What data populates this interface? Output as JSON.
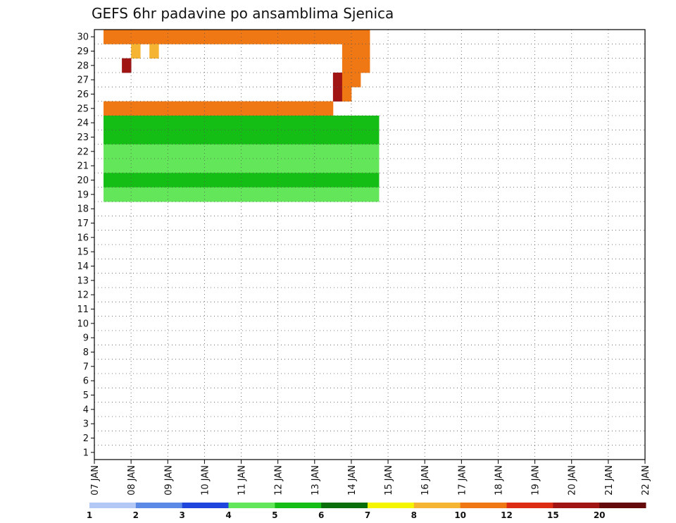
{
  "chart_data": {
    "type": "heatmap",
    "title": "GEFS 6hr padavine po ansamblima Sjenica",
    "xlabel": "",
    "ylabel": "",
    "x_ticks": [
      "07 JAN",
      "08 JAN",
      "09 JAN",
      "10 JAN",
      "11 JAN",
      "12 JAN",
      "13 JAN",
      "14 JAN",
      "15 JAN",
      "16 JAN",
      "17 JAN",
      "18 JAN",
      "19 JAN",
      "20 JAN",
      "21 JAN",
      "22 JAN"
    ],
    "y_ticks": [
      "1",
      "2",
      "3",
      "4",
      "5",
      "6",
      "7",
      "8",
      "9",
      "10",
      "11",
      "12",
      "13",
      "14",
      "15",
      "16",
      "17",
      "18",
      "19",
      "20",
      "21",
      "22",
      "23",
      "24",
      "25",
      "26",
      "27",
      "28",
      "29",
      "30"
    ],
    "x_range": [
      "07 JAN 00Z",
      "22 JAN 00Z"
    ],
    "y_range": [
      0,
      30
    ],
    "time_step_hours": 6,
    "grid": "dotted",
    "legend_position": "bottom",
    "colorbar": {
      "labels": [
        "1",
        "2",
        "3",
        "4",
        "5",
        "6",
        "7",
        "8",
        "10",
        "12",
        "15",
        "20"
      ],
      "colors": [
        "#b4c8f5",
        "#5a8ae6",
        "#1e46dc",
        "#64e65a",
        "#14be14",
        "#0a6e0a",
        "#f5f500",
        "#f5b432",
        "#f07814",
        "#dc2d14",
        "#a01414",
        "#640a0a"
      ]
    },
    "cells": [
      [
        30,
        1,
        8
      ],
      [
        30,
        2,
        8
      ],
      [
        30,
        3,
        8
      ],
      [
        30,
        4,
        8
      ],
      [
        30,
        5,
        8
      ],
      [
        30,
        6,
        8
      ],
      [
        30,
        7,
        8
      ],
      [
        30,
        8,
        8
      ],
      [
        30,
        9,
        8
      ],
      [
        30,
        10,
        8
      ],
      [
        30,
        11,
        8
      ],
      [
        30,
        12,
        8
      ],
      [
        30,
        13,
        8
      ],
      [
        30,
        14,
        8
      ],
      [
        30,
        15,
        8
      ],
      [
        30,
        16,
        8
      ],
      [
        30,
        17,
        8
      ],
      [
        30,
        18,
        8
      ],
      [
        30,
        19,
        8
      ],
      [
        30,
        20,
        8
      ],
      [
        30,
        21,
        8
      ],
      [
        30,
        22,
        8
      ],
      [
        30,
        23,
        8
      ],
      [
        30,
        24,
        8
      ],
      [
        30,
        25,
        8
      ],
      [
        30,
        26,
        8
      ],
      [
        30,
        27,
        8
      ],
      [
        30,
        28,
        8
      ],
      [
        30,
        29,
        8
      ],
      [
        29,
        4,
        7
      ],
      [
        29,
        6,
        7
      ],
      [
        29,
        27,
        8
      ],
      [
        29,
        28,
        8
      ],
      [
        29,
        29,
        8
      ],
      [
        28,
        3,
        10
      ],
      [
        28,
        27,
        8
      ],
      [
        28,
        28,
        8
      ],
      [
        28,
        29,
        8
      ],
      [
        27,
        26,
        10
      ],
      [
        27,
        27,
        8
      ],
      [
        27,
        28,
        8
      ],
      [
        26,
        26,
        10
      ],
      [
        26,
        27,
        8
      ],
      [
        25,
        1,
        8
      ],
      [
        25,
        2,
        8
      ],
      [
        25,
        3,
        8
      ],
      [
        25,
        4,
        8
      ],
      [
        25,
        5,
        8
      ],
      [
        25,
        6,
        8
      ],
      [
        25,
        7,
        8
      ],
      [
        25,
        8,
        8
      ],
      [
        25,
        9,
        8
      ],
      [
        25,
        10,
        8
      ],
      [
        25,
        11,
        8
      ],
      [
        25,
        12,
        8
      ],
      [
        25,
        13,
        8
      ],
      [
        25,
        14,
        8
      ],
      [
        25,
        15,
        8
      ],
      [
        25,
        16,
        8
      ],
      [
        25,
        17,
        8
      ],
      [
        25,
        18,
        8
      ],
      [
        25,
        19,
        8
      ],
      [
        25,
        20,
        8
      ],
      [
        25,
        21,
        8
      ],
      [
        25,
        22,
        8
      ],
      [
        25,
        23,
        8
      ],
      [
        25,
        24,
        8
      ],
      [
        25,
        25,
        8
      ],
      [
        24,
        1,
        4
      ],
      [
        24,
        2,
        4
      ],
      [
        24,
        3,
        4
      ],
      [
        24,
        4,
        4
      ],
      [
        24,
        5,
        4
      ],
      [
        24,
        6,
        4
      ],
      [
        24,
        7,
        4
      ],
      [
        24,
        8,
        4
      ],
      [
        24,
        9,
        4
      ],
      [
        24,
        10,
        4
      ],
      [
        24,
        11,
        4
      ],
      [
        24,
        12,
        4
      ],
      [
        24,
        13,
        4
      ],
      [
        24,
        14,
        4
      ],
      [
        24,
        15,
        4
      ],
      [
        24,
        16,
        4
      ],
      [
        24,
        17,
        4
      ],
      [
        24,
        18,
        4
      ],
      [
        24,
        19,
        4
      ],
      [
        24,
        20,
        4
      ],
      [
        24,
        21,
        4
      ],
      [
        24,
        22,
        4
      ],
      [
        24,
        23,
        4
      ],
      [
        24,
        24,
        4
      ],
      [
        24,
        25,
        4
      ],
      [
        24,
        26,
        4
      ],
      [
        24,
        27,
        4
      ],
      [
        24,
        28,
        4
      ],
      [
        24,
        29,
        4
      ],
      [
        24,
        30,
        4
      ],
      [
        23,
        1,
        4
      ],
      [
        23,
        2,
        4
      ],
      [
        23,
        3,
        4
      ],
      [
        23,
        4,
        4
      ],
      [
        23,
        5,
        4
      ],
      [
        23,
        6,
        4
      ],
      [
        23,
        7,
        4
      ],
      [
        23,
        8,
        4
      ],
      [
        23,
        9,
        4
      ],
      [
        23,
        10,
        4
      ],
      [
        23,
        11,
        4
      ],
      [
        23,
        12,
        4
      ],
      [
        23,
        13,
        4
      ],
      [
        23,
        14,
        4
      ],
      [
        23,
        15,
        4
      ],
      [
        23,
        16,
        4
      ],
      [
        23,
        17,
        4
      ],
      [
        23,
        18,
        4
      ],
      [
        23,
        19,
        4
      ],
      [
        23,
        20,
        4
      ],
      [
        23,
        21,
        4
      ],
      [
        23,
        22,
        4
      ],
      [
        23,
        23,
        4
      ],
      [
        23,
        24,
        4
      ],
      [
        23,
        25,
        4
      ],
      [
        23,
        26,
        4
      ],
      [
        23,
        27,
        4
      ],
      [
        23,
        28,
        4
      ],
      [
        23,
        29,
        4
      ],
      [
        23,
        30,
        4
      ],
      [
        22,
        1,
        3
      ],
      [
        22,
        2,
        3
      ],
      [
        22,
        3,
        3
      ],
      [
        22,
        4,
        3
      ],
      [
        22,
        5,
        3
      ],
      [
        22,
        6,
        3
      ],
      [
        22,
        7,
        3
      ],
      [
        22,
        8,
        3
      ],
      [
        22,
        9,
        3
      ],
      [
        22,
        10,
        3
      ],
      [
        22,
        11,
        3
      ],
      [
        22,
        12,
        3
      ],
      [
        22,
        13,
        3
      ],
      [
        22,
        14,
        3
      ],
      [
        22,
        15,
        3
      ],
      [
        22,
        16,
        3
      ],
      [
        22,
        17,
        3
      ],
      [
        22,
        18,
        3
      ],
      [
        22,
        19,
        3
      ],
      [
        22,
        20,
        3
      ],
      [
        22,
        21,
        3
      ],
      [
        22,
        22,
        3
      ],
      [
        22,
        23,
        3
      ],
      [
        22,
        24,
        3
      ],
      [
        22,
        25,
        3
      ],
      [
        22,
        26,
        3
      ],
      [
        22,
        27,
        3
      ],
      [
        22,
        28,
        3
      ],
      [
        22,
        29,
        3
      ],
      [
        22,
        30,
        3
      ],
      [
        21,
        1,
        3
      ],
      [
        21,
        2,
        3
      ],
      [
        21,
        3,
        3
      ],
      [
        21,
        4,
        3
      ],
      [
        21,
        5,
        3
      ],
      [
        21,
        6,
        3
      ],
      [
        21,
        7,
        3
      ],
      [
        21,
        8,
        3
      ],
      [
        21,
        9,
        3
      ],
      [
        21,
        10,
        3
      ],
      [
        21,
        11,
        3
      ],
      [
        21,
        12,
        3
      ],
      [
        21,
        13,
        3
      ],
      [
        21,
        14,
        3
      ],
      [
        21,
        15,
        3
      ],
      [
        21,
        16,
        3
      ],
      [
        21,
        17,
        3
      ],
      [
        21,
        18,
        3
      ],
      [
        21,
        19,
        3
      ],
      [
        21,
        20,
        3
      ],
      [
        21,
        21,
        3
      ],
      [
        21,
        22,
        3
      ],
      [
        21,
        23,
        3
      ],
      [
        21,
        24,
        3
      ],
      [
        21,
        25,
        3
      ],
      [
        21,
        26,
        3
      ],
      [
        21,
        27,
        3
      ],
      [
        21,
        28,
        3
      ],
      [
        21,
        29,
        3
      ],
      [
        21,
        30,
        3
      ],
      [
        20,
        1,
        4
      ],
      [
        20,
        2,
        4
      ],
      [
        20,
        3,
        4
      ],
      [
        20,
        4,
        4
      ],
      [
        20,
        5,
        4
      ],
      [
        20,
        6,
        4
      ],
      [
        20,
        7,
        4
      ],
      [
        20,
        8,
        4
      ],
      [
        20,
        9,
        4
      ],
      [
        20,
        10,
        4
      ],
      [
        20,
        11,
        4
      ],
      [
        20,
        12,
        4
      ],
      [
        20,
        13,
        4
      ],
      [
        20,
        14,
        4
      ],
      [
        20,
        15,
        4
      ],
      [
        20,
        16,
        4
      ],
      [
        20,
        17,
        4
      ],
      [
        20,
        18,
        4
      ],
      [
        20,
        19,
        4
      ],
      [
        20,
        20,
        4
      ],
      [
        20,
        21,
        4
      ],
      [
        20,
        22,
        4
      ],
      [
        20,
        23,
        4
      ],
      [
        20,
        24,
        4
      ],
      [
        20,
        25,
        4
      ],
      [
        20,
        26,
        4
      ],
      [
        20,
        27,
        4
      ],
      [
        20,
        28,
        4
      ],
      [
        20,
        29,
        4
      ],
      [
        20,
        30,
        4
      ],
      [
        19,
        1,
        3
      ],
      [
        19,
        2,
        3
      ],
      [
        19,
        3,
        3
      ],
      [
        19,
        4,
        3
      ],
      [
        19,
        5,
        3
      ],
      [
        19,
        6,
        3
      ],
      [
        19,
        7,
        3
      ],
      [
        19,
        8,
        3
      ],
      [
        19,
        9,
        3
      ],
      [
        19,
        10,
        3
      ],
      [
        19,
        11,
        3
      ],
      [
        19,
        12,
        3
      ],
      [
        19,
        13,
        3
      ],
      [
        19,
        14,
        3
      ],
      [
        19,
        15,
        3
      ],
      [
        19,
        16,
        3
      ],
      [
        19,
        17,
        3
      ],
      [
        19,
        18,
        3
      ],
      [
        19,
        19,
        3
      ],
      [
        19,
        20,
        3
      ],
      [
        19,
        21,
        3
      ],
      [
        19,
        22,
        3
      ],
      [
        19,
        23,
        3
      ],
      [
        19,
        24,
        3
      ],
      [
        19,
        25,
        3
      ],
      [
        19,
        26,
        3
      ],
      [
        19,
        27,
        3
      ],
      [
        19,
        28,
        3
      ],
      [
        19,
        29,
        3
      ],
      [
        19,
        30,
        3
      ]
    ]
  }
}
